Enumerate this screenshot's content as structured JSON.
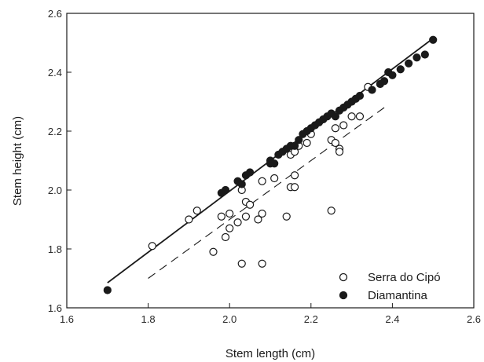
{
  "chart_data": {
    "type": "scatter",
    "title": "",
    "xlabel": "Stem length  (cm)",
    "ylabel": "Stem height  (cm)",
    "xlim": [
      1.6,
      2.6
    ],
    "ylim": [
      1.6,
      2.6
    ],
    "x_ticks": [
      "1.6",
      "1.8",
      "2.0",
      "2.2",
      "2.4",
      "2.6"
    ],
    "y_ticks": [
      "1.6",
      "1.8",
      "2.0",
      "2.2",
      "2.4",
      "2.6"
    ],
    "grid": false,
    "legend_position": "bottom-right",
    "series": [
      {
        "name": "Serra do Cipó",
        "marker": "open-circle",
        "color": "#1a1a1a",
        "points": [
          [
            1.81,
            1.81
          ],
          [
            1.9,
            1.9
          ],
          [
            1.92,
            1.93
          ],
          [
            1.96,
            1.79
          ],
          [
            1.98,
            1.91
          ],
          [
            1.99,
            1.84
          ],
          [
            2.0,
            1.87
          ],
          [
            2.0,
            1.92
          ],
          [
            2.02,
            1.89
          ],
          [
            2.03,
            1.75
          ],
          [
            2.03,
            2.0
          ],
          [
            2.04,
            1.91
          ],
          [
            2.04,
            1.96
          ],
          [
            2.05,
            1.95
          ],
          [
            2.07,
            1.9
          ],
          [
            2.08,
            1.92
          ],
          [
            2.08,
            1.75
          ],
          [
            2.08,
            2.03
          ],
          [
            2.11,
            2.04
          ],
          [
            2.14,
            1.91
          ],
          [
            2.15,
            2.01
          ],
          [
            2.16,
            2.01
          ],
          [
            2.15,
            2.12
          ],
          [
            2.16,
            2.13
          ],
          [
            2.16,
            2.05
          ],
          [
            2.17,
            2.15
          ],
          [
            2.19,
            2.16
          ],
          [
            2.2,
            2.19
          ],
          [
            2.25,
            1.93
          ],
          [
            2.25,
            2.17
          ],
          [
            2.26,
            2.16
          ],
          [
            2.26,
            2.21
          ],
          [
            2.27,
            2.14
          ],
          [
            2.27,
            2.13
          ],
          [
            2.28,
            2.22
          ],
          [
            2.3,
            2.25
          ],
          [
            2.32,
            2.25
          ],
          [
            2.34,
            2.35
          ]
        ]
      },
      {
        "name": "Diamantina",
        "marker": "filled-circle",
        "color": "#1a1a1a",
        "points": [
          [
            1.7,
            1.66
          ],
          [
            1.98,
            1.99
          ],
          [
            1.99,
            2.0
          ],
          [
            2.02,
            2.03
          ],
          [
            2.03,
            2.02
          ],
          [
            2.04,
            2.05
          ],
          [
            2.05,
            2.06
          ],
          [
            2.1,
            2.1
          ],
          [
            2.1,
            2.09
          ],
          [
            2.11,
            2.09
          ],
          [
            2.12,
            2.12
          ],
          [
            2.13,
            2.13
          ],
          [
            2.14,
            2.14
          ],
          [
            2.15,
            2.15
          ],
          [
            2.16,
            2.15
          ],
          [
            2.17,
            2.17
          ],
          [
            2.18,
            2.19
          ],
          [
            2.19,
            2.2
          ],
          [
            2.2,
            2.21
          ],
          [
            2.21,
            2.22
          ],
          [
            2.22,
            2.23
          ],
          [
            2.23,
            2.24
          ],
          [
            2.24,
            2.25
          ],
          [
            2.25,
            2.26
          ],
          [
            2.26,
            2.25
          ],
          [
            2.27,
            2.27
          ],
          [
            2.28,
            2.28
          ],
          [
            2.29,
            2.29
          ],
          [
            2.3,
            2.3
          ],
          [
            2.31,
            2.31
          ],
          [
            2.32,
            2.32
          ],
          [
            2.35,
            2.34
          ],
          [
            2.37,
            2.36
          ],
          [
            2.38,
            2.37
          ],
          [
            2.39,
            2.4
          ],
          [
            2.4,
            2.39
          ],
          [
            2.42,
            2.41
          ],
          [
            2.44,
            2.43
          ],
          [
            2.46,
            2.45
          ],
          [
            2.48,
            2.46
          ],
          [
            2.5,
            2.51
          ]
        ]
      }
    ],
    "fit_lines": [
      {
        "series": "Diamantina",
        "style": "solid",
        "x": [
          1.7,
          2.5
        ],
        "y": [
          1.685,
          2.515
        ]
      },
      {
        "series": "Serra do Cipó",
        "style": "dashed",
        "x": [
          1.8,
          2.38
        ],
        "y": [
          1.7,
          2.28
        ]
      }
    ]
  }
}
